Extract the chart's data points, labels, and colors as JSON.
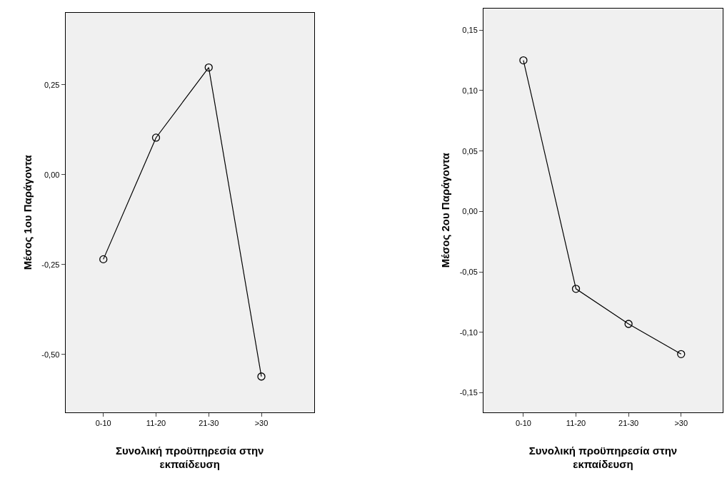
{
  "chart_data": [
    {
      "type": "line",
      "categories": [
        "0-10",
        "11-20",
        "21-30",
        ">30"
      ],
      "values": [
        -0.235,
        0.103,
        0.298,
        -0.561
      ],
      "color": "#000000",
      "marker": "circle",
      "line_style": "solid",
      "grid": false,
      "xlabel": "Συνολική προϋπηρεσία στην\nεκπαίδευση",
      "ylabel": "Μέσος 1ου Παράγοντα",
      "ylim": [
        -0.66,
        0.45
      ],
      "yticks": [
        {
          "value": -0.5,
          "label": "-0,50"
        },
        {
          "value": -0.25,
          "label": "-0,25"
        },
        {
          "value": 0,
          "label": "0,00"
        },
        {
          "value": 0.25,
          "label": "0,25"
        }
      ]
    },
    {
      "type": "line",
      "categories": [
        "0-10",
        "11-20",
        "21-30",
        ">30"
      ],
      "values": [
        0.125,
        -0.064,
        -0.093,
        -0.118
      ],
      "color": "#000000",
      "marker": "circle",
      "line_style": "solid",
      "grid": false,
      "xlabel": "Συνολική προϋπηρεσία στην\nεκπαίδευση",
      "ylabel": "Μέσος 2ου Παράγοντα",
      "ylim": [
        -0.166,
        0.168
      ],
      "yticks": [
        {
          "value": -0.15,
          "label": "-0,15"
        },
        {
          "value": -0.1,
          "label": "-0,10"
        },
        {
          "value": -0.05,
          "label": "-0,05"
        },
        {
          "value": 0,
          "label": "0,00"
        },
        {
          "value": 0.05,
          "label": "0,05"
        },
        {
          "value": 0.1,
          "label": "0,10"
        },
        {
          "value": 0.15,
          "label": "0,15"
        }
      ]
    }
  ]
}
